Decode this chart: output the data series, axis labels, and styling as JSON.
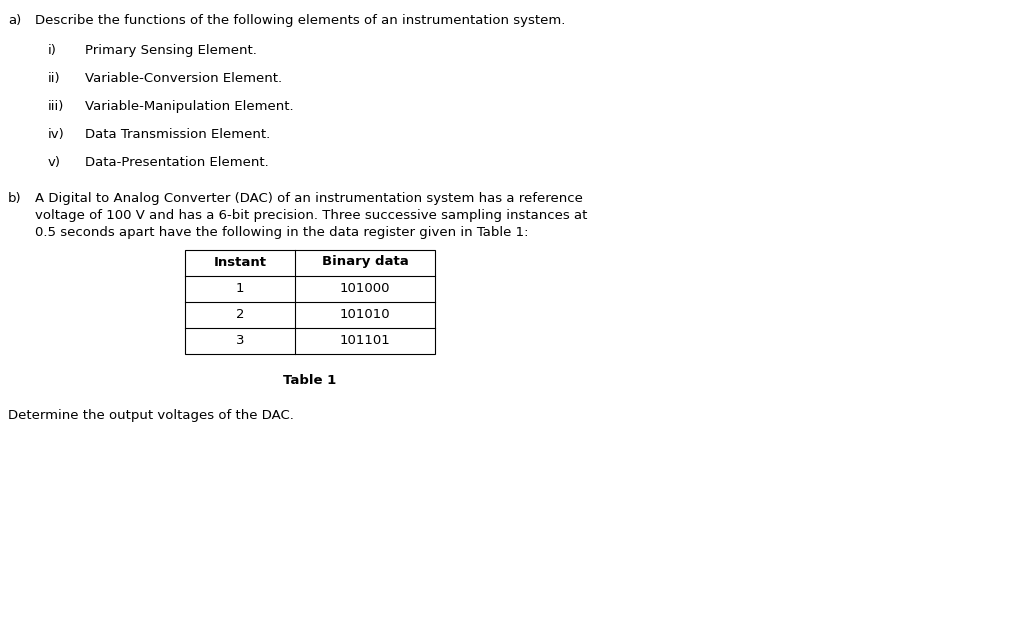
{
  "background_color": "#ffffff",
  "part_a_label": "a)",
  "part_a_text": "Describe the functions of the following elements of an instrumentation system.",
  "sub_items": [
    {
      "label": "i)",
      "text": "Primary Sensing Element."
    },
    {
      "label": "ii)",
      "text": "Variable-Conversion Element."
    },
    {
      "label": "iii)",
      "text": "Variable-Manipulation Element."
    },
    {
      "label": "iv)",
      "text": "Data Transmission Element."
    },
    {
      "label": "v)",
      "text": "Data-Presentation Element."
    }
  ],
  "part_b_label": "b)",
  "part_b_lines": [
    "A Digital to Analog Converter (DAC) of an instrumentation system has a reference",
    "voltage of 100 V and has a 6-bit precision. Three successive sampling instances at",
    "0.5 seconds apart have the following in the data register given in Table 1:"
  ],
  "table_headers": [
    "Instant",
    "Binary data"
  ],
  "table_rows": [
    [
      "1",
      "101000"
    ],
    [
      "2",
      "101010"
    ],
    [
      "3",
      "101101"
    ]
  ],
  "table_caption": "Table 1",
  "footer_text": "Determine the output voltages of the DAC.",
  "font_size": 9.5,
  "font_size_table": 9.5,
  "font_family": "DejaVu Sans"
}
